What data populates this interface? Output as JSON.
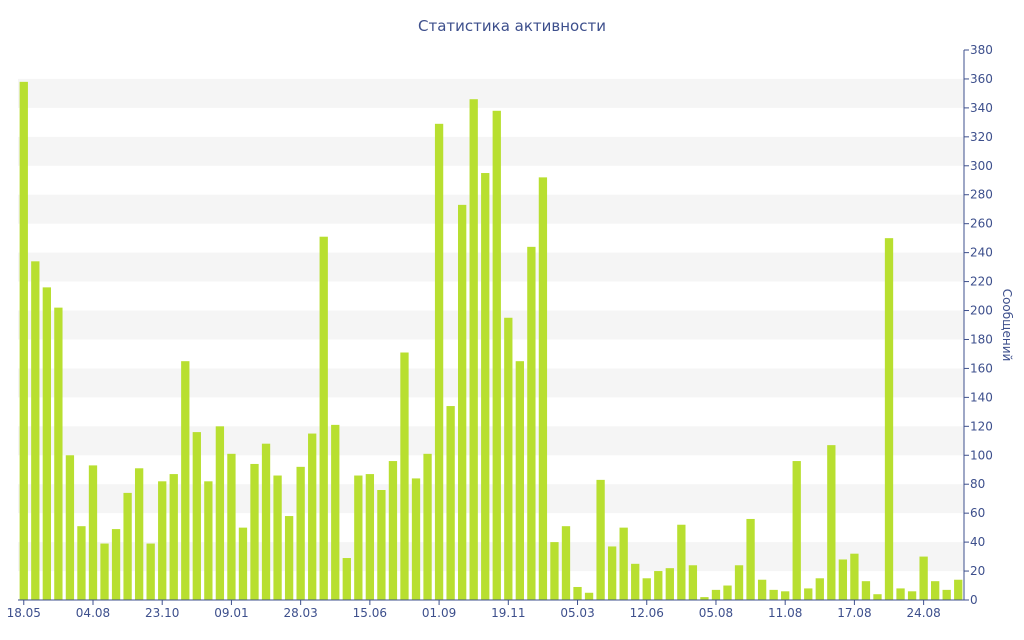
{
  "chart_data": {
    "type": "bar",
    "title": "Статистика активности",
    "xlabel": "",
    "ylabel": "Сообщений",
    "ylim": [
      0,
      380
    ],
    "y_axis_side": "right",
    "y_ticks": [
      0,
      20,
      40,
      60,
      80,
      100,
      120,
      140,
      160,
      180,
      200,
      220,
      240,
      260,
      280,
      300,
      320,
      340,
      360,
      380
    ],
    "grid": "alternating horizontal bands",
    "legend": "none",
    "x_tick_labels": [
      {
        "label": "18.05",
        "index": 0
      },
      {
        "label": "04.08",
        "index": 6
      },
      {
        "label": "23.10",
        "index": 12
      },
      {
        "label": "09.01",
        "index": 18
      },
      {
        "label": "28.03",
        "index": 24
      },
      {
        "label": "15.06",
        "index": 30
      },
      {
        "label": "01.09",
        "index": 36
      },
      {
        "label": "19.11",
        "index": 42
      },
      {
        "label": "05.03",
        "index": 48
      },
      {
        "label": "12.06",
        "index": 54
      },
      {
        "label": "05.08",
        "index": 60
      },
      {
        "label": "11.08",
        "index": 66
      },
      {
        "label": "17.08",
        "index": 72
      },
      {
        "label": "24.08",
        "index": 78
      }
    ],
    "values": [
      358,
      234,
      216,
      202,
      100,
      51,
      93,
      39,
      49,
      74,
      91,
      39,
      82,
      87,
      165,
      116,
      82,
      120,
      101,
      50,
      94,
      108,
      86,
      58,
      92,
      115,
      251,
      121,
      29,
      86,
      87,
      76,
      96,
      171,
      84,
      101,
      329,
      134,
      273,
      346,
      295,
      338,
      195,
      165,
      244,
      292,
      40,
      51,
      9,
      5,
      83,
      37,
      50,
      25,
      15,
      20,
      22,
      52,
      24,
      2,
      7,
      10,
      24,
      56,
      14,
      7,
      6,
      96,
      8,
      15,
      107,
      28,
      32,
      13,
      4,
      250,
      8,
      6,
      30,
      13,
      7,
      14
    ],
    "colors": {
      "bar": "#b8df30",
      "text": "#3d4f8c",
      "band": "#f5f5f5",
      "axis": "#3d4f8c"
    }
  }
}
